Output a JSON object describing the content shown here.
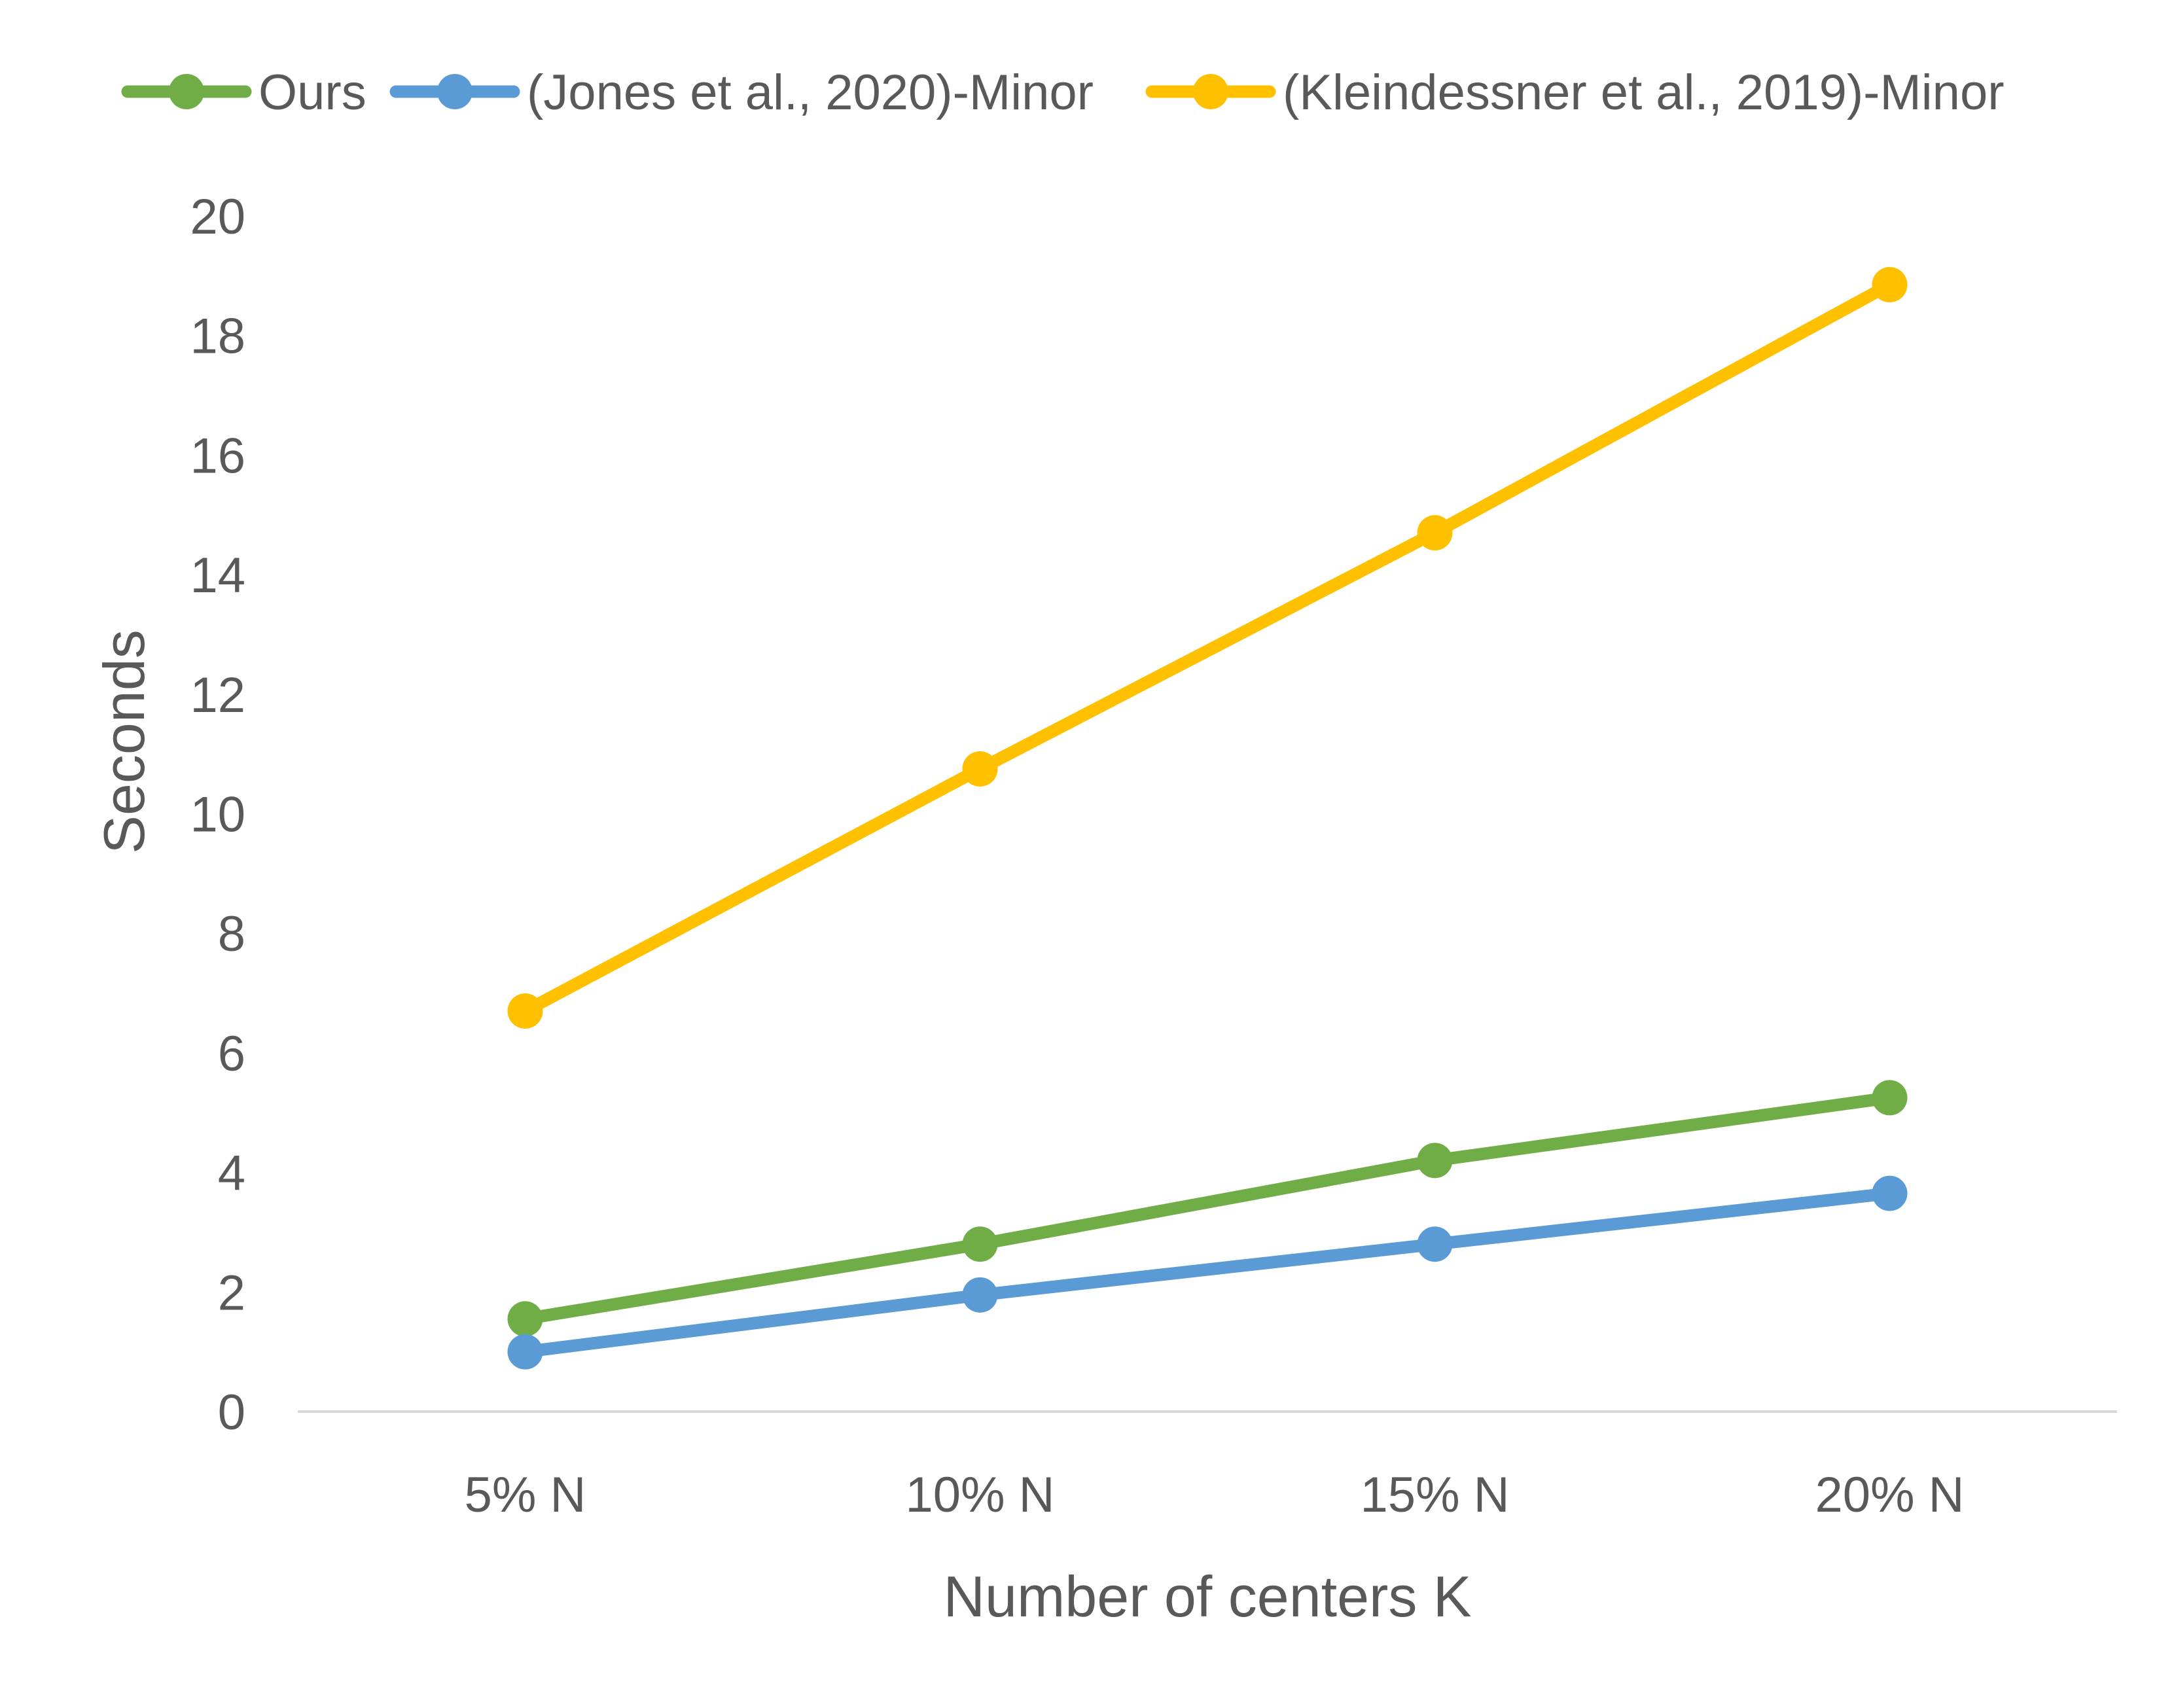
{
  "chart_data": {
    "type": "line",
    "title": "",
    "xlabel": "Number of centers K",
    "ylabel": "Seconds",
    "categories": [
      "5% N",
      "10% N",
      "15% N",
      "20% N"
    ],
    "ylim": [
      0,
      20
    ],
    "yticks": [
      0,
      2,
      4,
      6,
      8,
      10,
      12,
      14,
      16,
      18,
      20
    ],
    "grid": false,
    "legend_position": "top",
    "series": [
      {
        "name": "Ours",
        "color": "#70AD47",
        "values": [
          1.55,
          2.8,
          4.2,
          5.25
        ]
      },
      {
        "name": "(Jones et al., 2020)-Minor",
        "color": "#5B9BD5",
        "values": [
          1.0,
          1.95,
          2.8,
          3.65
        ]
      },
      {
        "name": "(Kleindessner et al., 2019)-Minor",
        "color": "#FFC000",
        "values": [
          6.7,
          10.75,
          14.7,
          18.85
        ]
      }
    ]
  }
}
